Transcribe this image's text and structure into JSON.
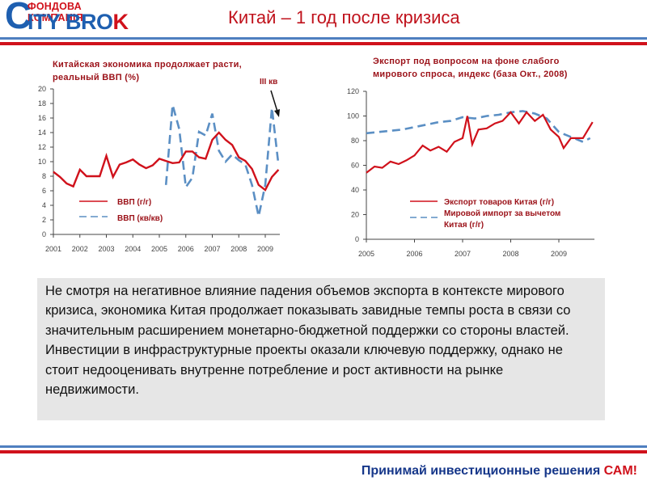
{
  "header": {
    "logo_top": "ФОНДОВА КОМПАНІЯ",
    "logo_c": "C",
    "logo_main": "ITY BRO",
    "logo_k": "K",
    "title": "Китай – 1 год после кризиса"
  },
  "colors": {
    "red": "#d0111b",
    "blue": "#4f7fc0",
    "dark_red": "#9b1118",
    "navy": "#16378a",
    "dashed_series": "#5b8fc4"
  },
  "left_chart": {
    "title_line1": "Китайская экономика продолжает расти,",
    "title_line2": "реальный ВВП (%)",
    "annotation": "III кв",
    "legend": [
      "ВВП (г/г)",
      "ВВП (кв/кв)"
    ]
  },
  "right_chart": {
    "title_line1": "Экспорт под вопросом на фоне слабого",
    "title_line2": "мирового спроса, индекс (база Окт., 2008)",
    "legend": [
      "Экспорт товаров Китая (г/г)",
      "Мировой импорт за вычетом",
      "Китая (г/г)"
    ]
  },
  "chart_data": [
    {
      "type": "line",
      "title": "Китайская экономика продолжает расти, реальный ВВП (%)",
      "xlabel": "",
      "ylabel": "",
      "ylim": [
        0,
        20
      ],
      "yticks": [
        0,
        2,
        4,
        6,
        8,
        10,
        12,
        14,
        16,
        18,
        20
      ],
      "xticks": [
        "2001",
        "2002",
        "2003",
        "2004",
        "2005",
        "2006",
        "2007",
        "2008",
        "2009"
      ],
      "annotation": "III кв",
      "legend_position": "lower-left",
      "series": [
        {
          "name": "ВВП (г/г)",
          "style": "solid-red",
          "x": [
            2001.0,
            2001.25,
            2001.5,
            2001.75,
            2002.0,
            2002.25,
            2002.5,
            2002.75,
            2003.0,
            2003.25,
            2003.5,
            2003.75,
            2004.0,
            2004.25,
            2004.5,
            2004.75,
            2005.0,
            2005.25,
            2005.5,
            2005.75,
            2006.0,
            2006.25,
            2006.5,
            2006.75,
            2007.0,
            2007.25,
            2007.5,
            2007.75,
            2008.0,
            2008.25,
            2008.5,
            2008.75,
            2009.0,
            2009.25,
            2009.5
          ],
          "values": [
            8.6,
            7.9,
            7.0,
            6.6,
            8.9,
            8.0,
            8.0,
            8.0,
            10.8,
            7.9,
            9.6,
            9.9,
            10.3,
            9.6,
            9.1,
            9.5,
            10.4,
            10.1,
            9.8,
            9.9,
            11.4,
            11.4,
            10.6,
            10.4,
            13.0,
            14.0,
            13.0,
            12.3,
            10.6,
            10.1,
            9.0,
            6.8,
            6.1,
            7.9,
            8.9
          ]
        },
        {
          "name": "ВВП (кв/кв)",
          "style": "dashed-blue",
          "x": [
            2005.25,
            2005.5,
            2005.75,
            2006.0,
            2006.25,
            2006.5,
            2006.75,
            2007.0,
            2007.25,
            2007.5,
            2007.75,
            2008.0,
            2008.25,
            2008.5,
            2008.75,
            2009.0,
            2009.25,
            2009.5
          ],
          "values": [
            6.8,
            17.8,
            14.5,
            6.5,
            7.8,
            14.1,
            13.6,
            16.6,
            11.5,
            10.0,
            11.0,
            10.2,
            9.6,
            6.8,
            2.5,
            6.8,
            17.4,
            9.5
          ]
        }
      ]
    },
    {
      "type": "line",
      "title": "Экспорт под вопросом на фоне слабого мирового спроса, индекс (база Окт., 2008)",
      "xlabel": "",
      "ylabel": "",
      "ylim": [
        0,
        120
      ],
      "yticks": [
        0,
        20,
        40,
        60,
        80,
        100,
        120
      ],
      "xticks": [
        "2005",
        "2006",
        "2007",
        "2008",
        "2009"
      ],
      "legend_position": "lower-center",
      "series": [
        {
          "name": "Экспорт товаров Китая (г/г)",
          "style": "solid-red",
          "x": [
            2005.0,
            2005.17,
            2005.33,
            2005.5,
            2005.67,
            2005.83,
            2006.0,
            2006.17,
            2006.33,
            2006.5,
            2006.67,
            2006.83,
            2007.0,
            2007.1,
            2007.2,
            2007.33,
            2007.5,
            2007.67,
            2007.83,
            2008.0,
            2008.17,
            2008.33,
            2008.5,
            2008.67,
            2008.83,
            2009.0,
            2009.1,
            2009.25,
            2009.5,
            2009.7
          ],
          "values": [
            54,
            59,
            58,
            63,
            61,
            64,
            68,
            76,
            72,
            75,
            71,
            79,
            82,
            100,
            77,
            89,
            90,
            94,
            96,
            103,
            94,
            103,
            96,
            101,
            89,
            83,
            74,
            82,
            82,
            95
          ]
        },
        {
          "name": "Мировой импорт за вычетом Китая (г/г)",
          "style": "dashed-blue",
          "x": [
            2005.0,
            2005.25,
            2005.5,
            2005.75,
            2006.0,
            2006.25,
            2006.5,
            2006.75,
            2007.0,
            2007.25,
            2007.5,
            2007.75,
            2008.0,
            2008.25,
            2008.5,
            2008.75,
            2009.0,
            2009.25,
            2009.5,
            2009.65
          ],
          "values": [
            86,
            87,
            88,
            89,
            91,
            93,
            95,
            96,
            99,
            98,
            100,
            101,
            103,
            104,
            102,
            98,
            87,
            83,
            79,
            82
          ]
        }
      ]
    }
  ],
  "body_text": "Не смотря на негативное влияние падения объемов экспорта в контексте мирового кризиса, экономика Китая продолжает показывать завидные темпы роста в связи со значительным расширением монетарно-бюджетной поддержки со стороны властей. Инвестиции в инфраструктурные проекты оказали ключевую поддержку, однако не стоит недооценивать внутренне потребление и рост активности на рынке недвижимости.",
  "footer": {
    "slogan_main": "Принимай инвестиционные решения ",
    "slogan_accent": "САМ!"
  }
}
